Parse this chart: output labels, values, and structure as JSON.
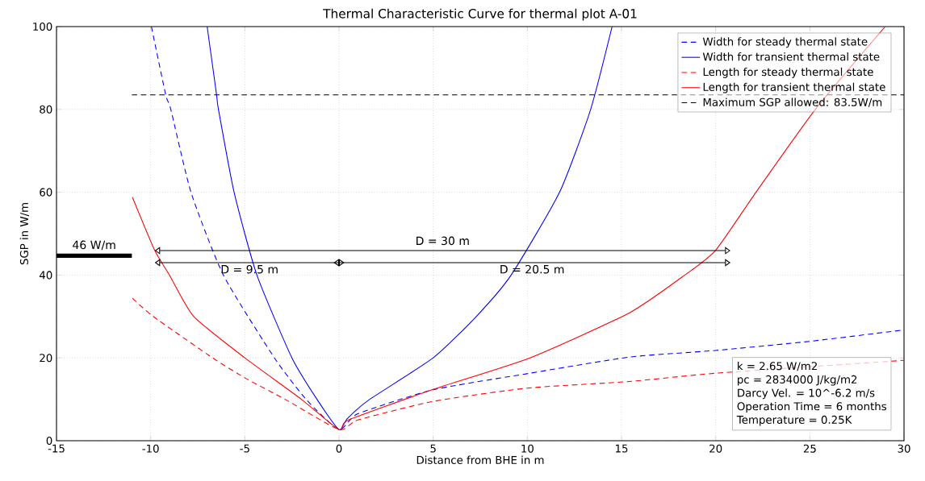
{
  "chart_data": {
    "type": "line",
    "title": "Thermal Characteristic Curve for thermal plot A-01",
    "xlabel": "Distance from BHE in m",
    "ylabel": "SGP in W/m",
    "xlim": [
      -15,
      30
    ],
    "ylim": [
      0,
      100
    ],
    "xticks": [
      -15,
      -10,
      -5,
      0,
      5,
      10,
      15,
      20,
      25,
      30
    ],
    "yticks": [
      0,
      20,
      40,
      60,
      80,
      100
    ],
    "grid": true,
    "legend": "top right",
    "series": [
      {
        "name": "Width for steady thermal state",
        "color": "#0000ff",
        "line_style": "dashed",
        "x": [
          -9.96,
          -9.2,
          -8.93,
          -7.86,
          -6.14,
          -3.43,
          -1.71,
          0,
          1,
          5,
          10.14,
          15.43,
          20,
          25,
          29.9
        ],
        "values": [
          100,
          83.5,
          80,
          60,
          40,
          20,
          9.8,
          2.7,
          6.5,
          12.3,
          16.3,
          20.2,
          21.8,
          24.0,
          26.7
        ]
      },
      {
        "name": "Width for transient thermal state",
        "color": "#0000ff",
        "line_style": "solid",
        "x": [
          -7.0,
          -6.5,
          -6.4,
          -5.57,
          -4.36,
          -2.5,
          -1.14,
          0,
          0.43,
          1.57,
          5,
          7.29,
          9.14,
          11.71,
          13.36,
          14.5
        ],
        "values": [
          100,
          83.5,
          80,
          60,
          40,
          20,
          9.8,
          2.7,
          5.3,
          9.8,
          20,
          30,
          40,
          60,
          80,
          100
        ]
      },
      {
        "name": "Length for steady thermal state",
        "color": "#ff0000",
        "line_style": "dashed",
        "x": [
          -10.97,
          -9.86,
          -6.71,
          -4.93,
          -2.86,
          0,
          1,
          5,
          10,
          15.43,
          20,
          30
        ],
        "values": [
          34.4,
          30,
          20,
          15,
          10,
          2.7,
          5,
          9.5,
          12.7,
          14.3,
          16.3,
          19.4
        ]
      },
      {
        "name": "Length for transient thermal state",
        "color": "#ff0000",
        "line_style": "solid",
        "x": [
          -10.97,
          -9.79,
          -9,
          -7.71,
          -5,
          -2,
          0,
          0.5,
          5,
          10.14,
          15.43,
          18.36,
          20,
          22.14,
          25.29,
          29
        ],
        "values": [
          58.8,
          46,
          40,
          30,
          20,
          10,
          2.7,
          5,
          12.4,
          20,
          30.9,
          40,
          46,
          60,
          80,
          100
        ]
      },
      {
        "name": "Maximum SGP allowed: 83.5W/m",
        "color": "#000000",
        "line_style": "dashed",
        "x": [
          -11,
          30
        ],
        "values": [
          83.5,
          83.5
        ]
      },
      {
        "color": "#000000",
        "line_style": "solid",
        "marker": "triangle",
        "x": [
          -11,
          -15
        ],
        "values": [
          44.7,
          44.7
        ]
      },
      {
        "color": "#000000",
        "line_style": "solid",
        "marker": "triangle",
        "x": [
          -9.5,
          20.5
        ],
        "values": [
          45.9,
          45.9
        ]
      },
      {
        "color": "#000000",
        "line_style": "solid",
        "marker": "triangle",
        "x": [
          -9.5,
          0
        ],
        "values": [
          43,
          43
        ]
      },
      {
        "color": "#000000",
        "line_style": "solid",
        "marker": "triangle",
        "x": [
          0,
          20.5
        ],
        "values": [
          43,
          43
        ]
      }
    ],
    "annotations": [
      "46 W/m",
      "D = 30 m",
      "D = 9.5 m",
      "D = 20.5 m",
      "k = 2.65 W/m2",
      "pc = 2834000 J/kg/m2",
      "Darcy Vel. = 10^-6.2 m/s",
      "Operation Time = 6 months",
      "Temperature = 0.25K"
    ]
  }
}
